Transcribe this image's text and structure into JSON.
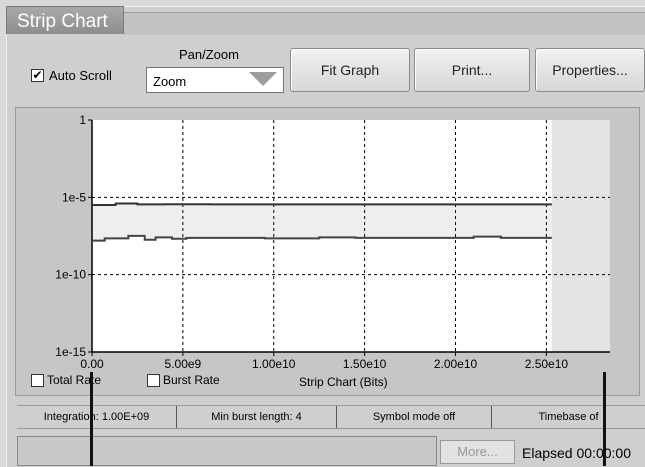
{
  "window": {
    "title": "Strip Chart"
  },
  "toolbar": {
    "auto_scroll_label": "Auto Scroll",
    "auto_scroll_checked": true,
    "pan_zoom_label": "Pan/Zoom",
    "pan_zoom_value": "Zoom",
    "fit_graph_label": "Fit Graph",
    "print_label": "Print...",
    "properties_label": "Properties..."
  },
  "legend": {
    "total_rate_label": "Total Rate",
    "total_rate_checked": false,
    "burst_rate_label": "Burst Rate",
    "burst_rate_checked": false
  },
  "chart_data": {
    "type": "line",
    "xlabel": "Strip Chart (Bits)",
    "ylabel": "",
    "x_ticks": [
      "0.00",
      "5.00e9",
      "1.00e10",
      "1.50e10",
      "2.00e10",
      "2.50e10"
    ],
    "y_ticks": [
      "1",
      "1e-5",
      "1e-10",
      "1e-15"
    ],
    "xlim": [
      0,
      28500000000
    ],
    "ylim": [
      1e-15,
      1
    ],
    "log_y": true,
    "grid": true,
    "band_fill": "#eeeeee",
    "series": [
      {
        "color": "#333333",
        "x": [
          0,
          1300000000,
          1300000000,
          2500000000,
          2500000000,
          4000000000,
          4000000000,
          6500000000,
          6500000000,
          25300000000
        ],
        "y": [
          3.2e-06,
          3.2e-06,
          4e-06,
          4e-06,
          3.5e-06,
          3.5e-06,
          3.6e-06,
          3.6e-06,
          3.5e-06,
          3.5e-06
        ]
      },
      {
        "color": "#444444",
        "x": [
          0,
          700000000,
          700000000,
          2000000000,
          2000000000,
          2900000000,
          2900000000,
          3500000000,
          3500000000,
          4400000000,
          4400000000,
          5200000000,
          5200000000,
          9500000000,
          9500000000,
          12500000000,
          12500000000,
          14500000000,
          14500000000,
          21000000000,
          21000000000,
          22500000000,
          22500000000,
          25300000000
        ],
        "y": [
          1.6e-08,
          1.6e-08,
          2.2e-08,
          2.2e-08,
          3.2e-08,
          3.2e-08,
          1.8e-08,
          1.8e-08,
          2.6e-08,
          2.6e-08,
          2.1e-08,
          2.1e-08,
          2.4e-08,
          2.4e-08,
          2.2e-08,
          2.2e-08,
          2.6e-08,
          2.6e-08,
          2.4e-08,
          2.4e-08,
          2.9e-08,
          2.9e-08,
          2.4e-08,
          2.4e-08
        ]
      }
    ]
  },
  "status_bar": {
    "integration": "Integration: 1.00E+09",
    "min_burst": "Min burst length: 4",
    "symbol_mode": "Symbol mode off",
    "timebase": "Timebase of"
  },
  "footer": {
    "more_label": "More...",
    "elapsed_text": "Elapsed 00:00:00"
  }
}
